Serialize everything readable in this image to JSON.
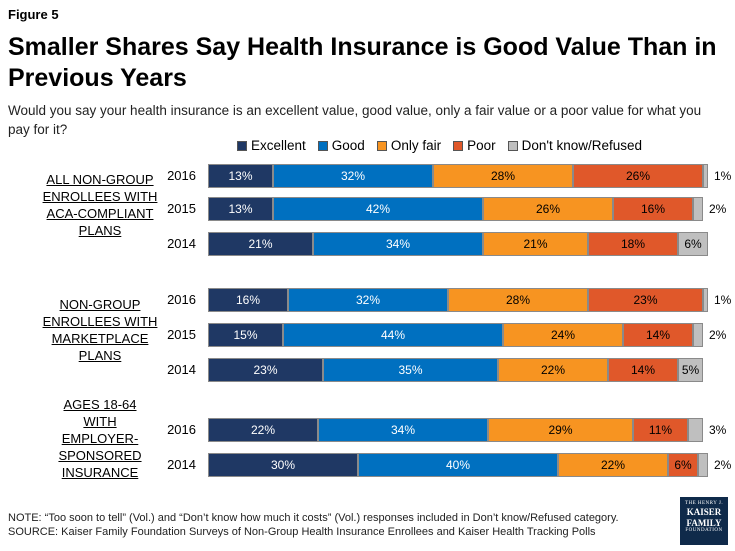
{
  "figure_label": "Figure 5",
  "chart_data": {
    "type": "bar",
    "orientation": "horizontal-stacked",
    "title": "Smaller Shares Say Health Insurance is Good Value Than in Previous Years",
    "subtitle": "Would you say your health insurance is an excellent value, good value, only a fair value or a poor value for what you pay for it?",
    "series_names": [
      "Excellent",
      "Good",
      "Only fair",
      "Poor",
      "Don't know/Refused"
    ],
    "colors": [
      "#1f3864",
      "#0070c0",
      "#f79421",
      "#e0582a",
      "#bfbfbf"
    ],
    "groups": [
      {
        "label_lines": [
          "ALL NON-GROUP",
          "ENROLLEES WITH",
          "ACA-COMPLIANT",
          "PLANS"
        ],
        "rows": [
          {
            "year": "2016",
            "values": [
              13,
              32,
              28,
              26,
              1
            ]
          },
          {
            "year": "2015",
            "values": [
              13,
              42,
              26,
              16,
              2
            ]
          },
          {
            "year": "2014",
            "values": [
              21,
              34,
              21,
              18,
              6
            ]
          }
        ]
      },
      {
        "label_lines": [
          "NON-GROUP",
          "ENROLLEES WITH",
          "MARKETPLACE",
          "PLANS"
        ],
        "rows": [
          {
            "year": "2016",
            "values": [
              16,
              32,
              28,
              23,
              1
            ]
          },
          {
            "year": "2015",
            "values": [
              15,
              44,
              24,
              14,
              2
            ]
          },
          {
            "year": "2014",
            "values": [
              23,
              35,
              22,
              14,
              5
            ]
          }
        ]
      },
      {
        "label_lines": [
          "AGES 18-64",
          "WITH",
          "EMPLOYER-",
          "SPONSORED",
          "INSURANCE"
        ],
        "rows": [
          {
            "year": "2016",
            "values": [
              22,
              34,
              29,
              11,
              3
            ]
          },
          {
            "year": "2014",
            "values": [
              30,
              40,
              22,
              6,
              2
            ]
          }
        ]
      }
    ]
  },
  "note_lines": [
    "NOTE: “Too soon to tell” (Vol.) and “Don’t know how much it costs” (Vol.) responses included in Don’t know/Refused category.",
    "SOURCE: Kaiser Family Foundation Surveys of Non-Group Health Insurance Enrollees and Kaiser Health Tracking Polls"
  ],
  "logo": {
    "line1": "THE HENRY J.",
    "line2": "KAISER",
    "line3": "FAMILY",
    "line4": "FOUNDATION"
  }
}
